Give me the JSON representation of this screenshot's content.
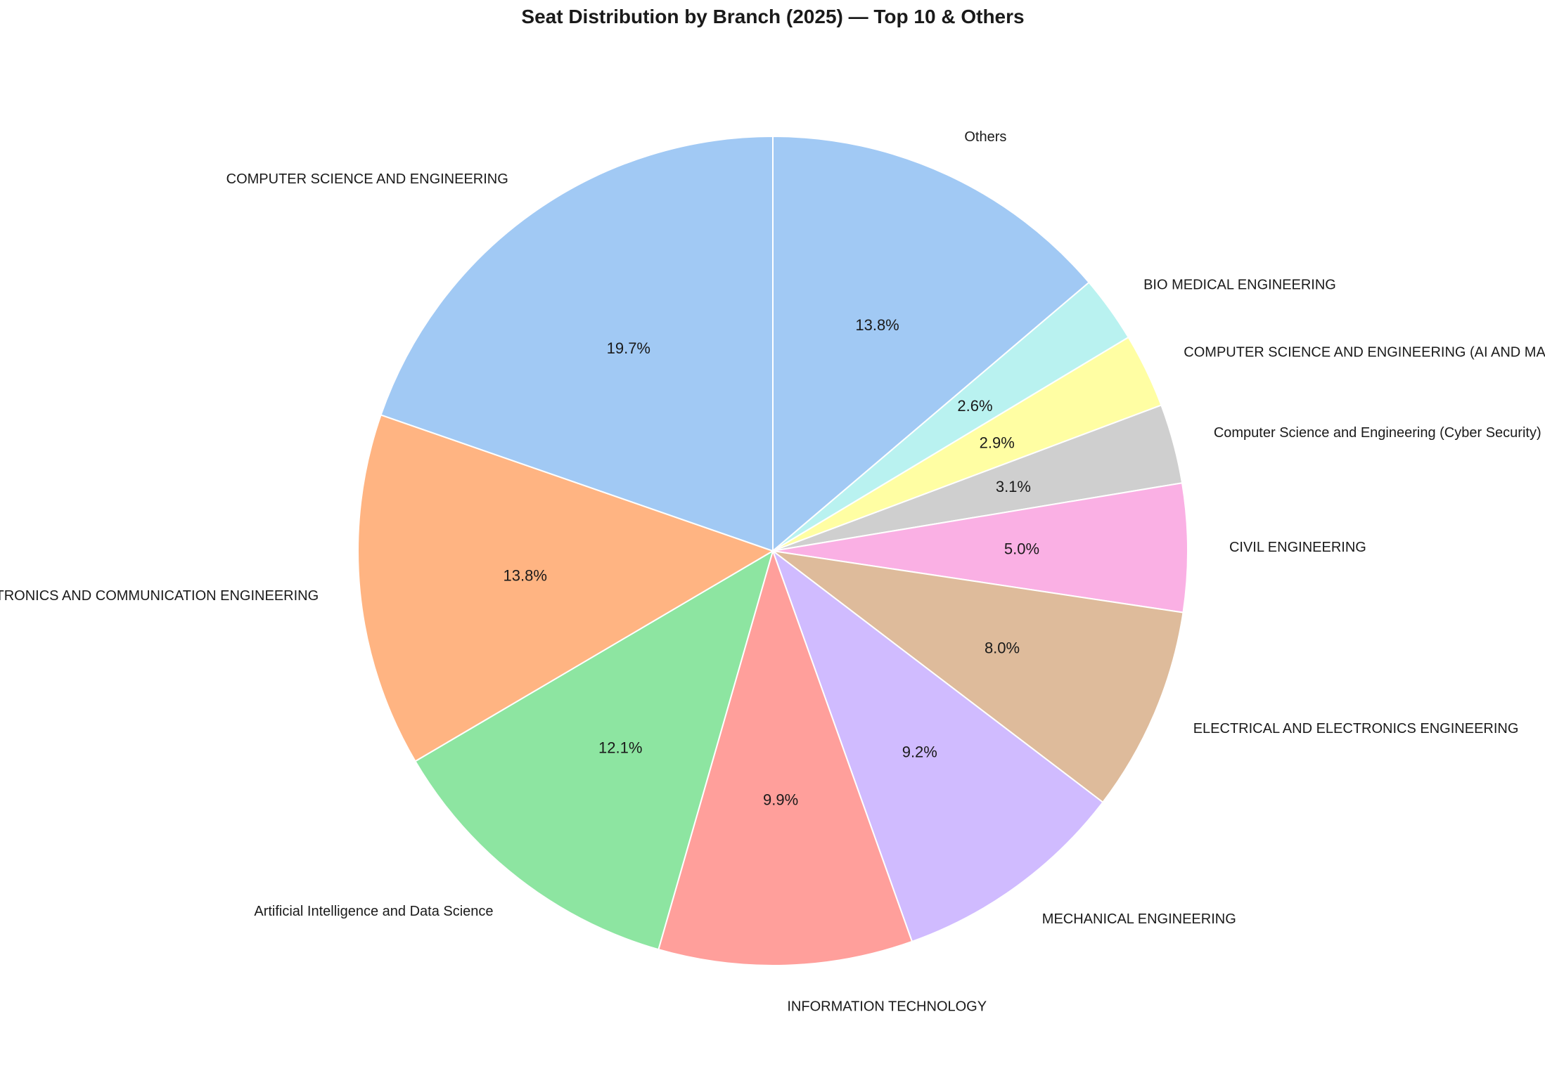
{
  "chart_data": {
    "type": "pie",
    "title": "Seat Distribution by Branch (2025) — Top 10 & Others",
    "start_angle_deg": 90,
    "direction": "clockwise",
    "slices": [
      {
        "label": "Others",
        "value": 13.8,
        "pct_label": "13.8%",
        "color": "#a1c9f4"
      },
      {
        "label": "BIO MEDICAL ENGINEERING",
        "value": 2.6,
        "pct_label": "2.6%",
        "color": "#b9f2f0"
      },
      {
        "label": "COMPUTER SCIENCE AND ENGINEERING (AI AND MACHINE LEARNING)",
        "value": 2.9,
        "pct_label": "2.9%",
        "color": "#fffea3"
      },
      {
        "label": "Computer Science and Engineering (Cyber Security)",
        "value": 3.1,
        "pct_label": "3.1%",
        "color": "#cfcfcf"
      },
      {
        "label": "CIVIL ENGINEERING",
        "value": 5.0,
        "pct_label": "5.0%",
        "color": "#fab0e4"
      },
      {
        "label": "ELECTRICAL AND ELECTRONICS ENGINEERING",
        "value": 8.0,
        "pct_label": "8.0%",
        "color": "#debb9b"
      },
      {
        "label": "MECHANICAL ENGINEERING",
        "value": 9.2,
        "pct_label": "9.2%",
        "color": "#d0bbff"
      },
      {
        "label": "INFORMATION TECHNOLOGY",
        "value": 9.9,
        "pct_label": "9.9%",
        "color": "#ff9f9b"
      },
      {
        "label": "Artificial Intelligence and Data Science",
        "value": 12.1,
        "pct_label": "12.1%",
        "color": "#8de5a1"
      },
      {
        "label": "ELECTRONICS AND COMMUNICATION ENGINEERING",
        "value": 13.8,
        "pct_label": "13.8%",
        "color": "#ffb482"
      },
      {
        "label": "COMPUTER SCIENCE AND ENGINEERING",
        "value": 19.7,
        "pct_label": "19.7%",
        "color": "#a1c9f4"
      }
    ]
  }
}
